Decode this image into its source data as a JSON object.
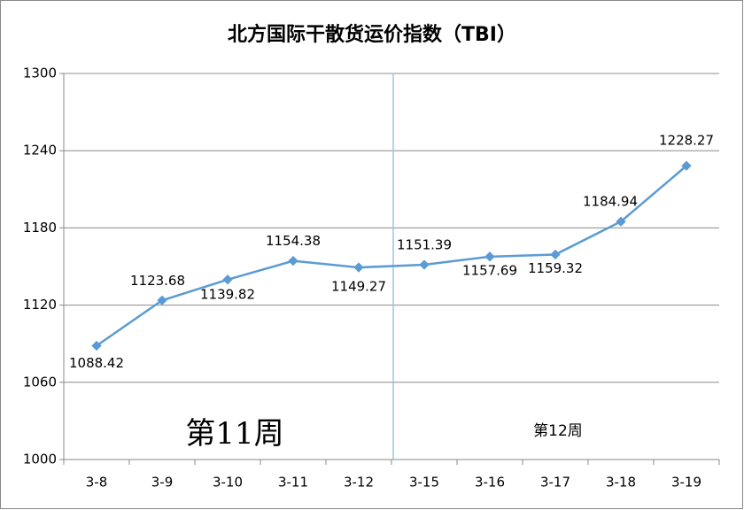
{
  "chart_data": {
    "type": "line",
    "title": "北方国际干散货运价指数（TBI）",
    "categories": [
      "3-8",
      "3-9",
      "3-10",
      "3-11",
      "3-12",
      "3-15",
      "3-16",
      "3-17",
      "3-18",
      "3-19"
    ],
    "values": [
      1088.42,
      1123.68,
      1139.82,
      1154.38,
      1149.27,
      1151.39,
      1157.69,
      1159.32,
      1184.94,
      1228.27
    ],
    "color": "#5b9bd5",
    "ylim": [
      1000,
      1300
    ],
    "yticks": [
      1000,
      1060,
      1120,
      1180,
      1240,
      1300
    ],
    "grid": true,
    "annotations": [
      "第11周",
      "第12周"
    ]
  }
}
